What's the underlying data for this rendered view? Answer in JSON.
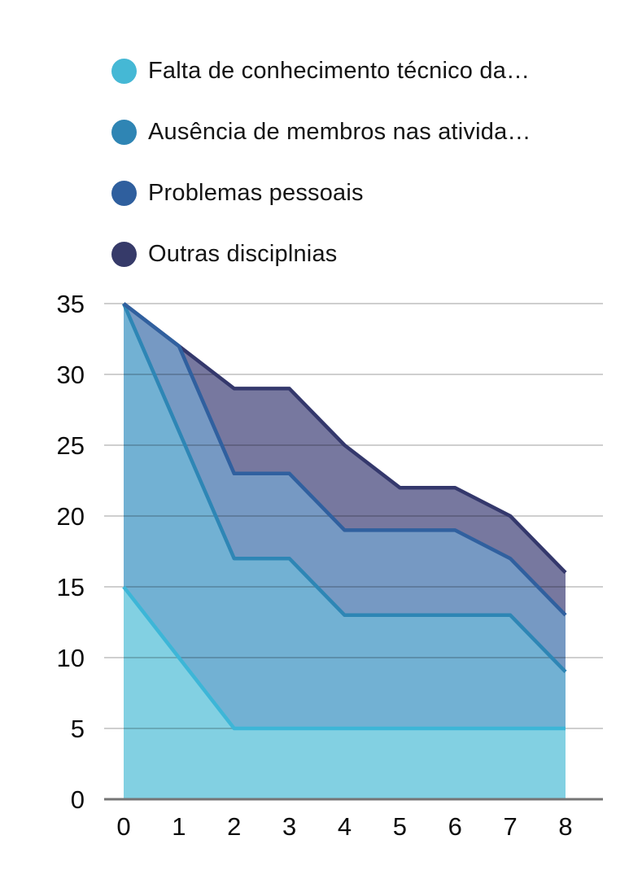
{
  "chart_data": {
    "type": "area",
    "title": "",
    "xlabel": "",
    "ylabel": "",
    "x": [
      0,
      1,
      2,
      3,
      4,
      5,
      6,
      7,
      8
    ],
    "x_ticks": [
      "0",
      "1",
      "2",
      "3",
      "4",
      "5",
      "6",
      "7",
      "8"
    ],
    "y_ticks": [
      0,
      5,
      10,
      15,
      20,
      25,
      30,
      35
    ],
    "ylim": [
      0,
      35
    ],
    "xlim": [
      0,
      8
    ],
    "grid": "horizontal",
    "gridline_color": "#cdcdcd",
    "axis_line_color": "#757575",
    "legend_position": "top-left",
    "series": [
      {
        "id": "falta-conhecimento-tecnico",
        "name": "Falta de conhecimento técnico da…",
        "values": [
          15,
          10,
          5,
          5,
          5,
          5,
          5,
          5,
          5
        ],
        "legend_color": "#45b8d5",
        "line_color": "#3db6d7",
        "fill_color": "#82d0e2"
      },
      {
        "id": "ausencia-de-membros",
        "name": "Ausência de membros nas ativida…",
        "values": [
          35,
          26,
          17,
          17,
          13,
          13,
          13,
          13,
          9
        ],
        "legend_color": "#2f85b4",
        "line_color": "#2e86b5",
        "fill_color": "#72b1d3"
      },
      {
        "id": "problemas-pessoais",
        "name": "Problemas pessoais",
        "values": [
          35,
          32,
          23,
          23,
          19,
          19,
          19,
          17,
          13
        ],
        "legend_color": "#2f5f9e",
        "line_color": "#30609f",
        "fill_color": "#7699c3"
      },
      {
        "id": "outras-disciplnias",
        "name": "Outras disciplnias",
        "values": [
          35,
          32,
          29,
          29,
          25,
          22,
          22,
          20,
          16
        ],
        "legend_color": "#363a69",
        "line_color": "#34386c",
        "fill_color": "#77789f"
      }
    ]
  }
}
